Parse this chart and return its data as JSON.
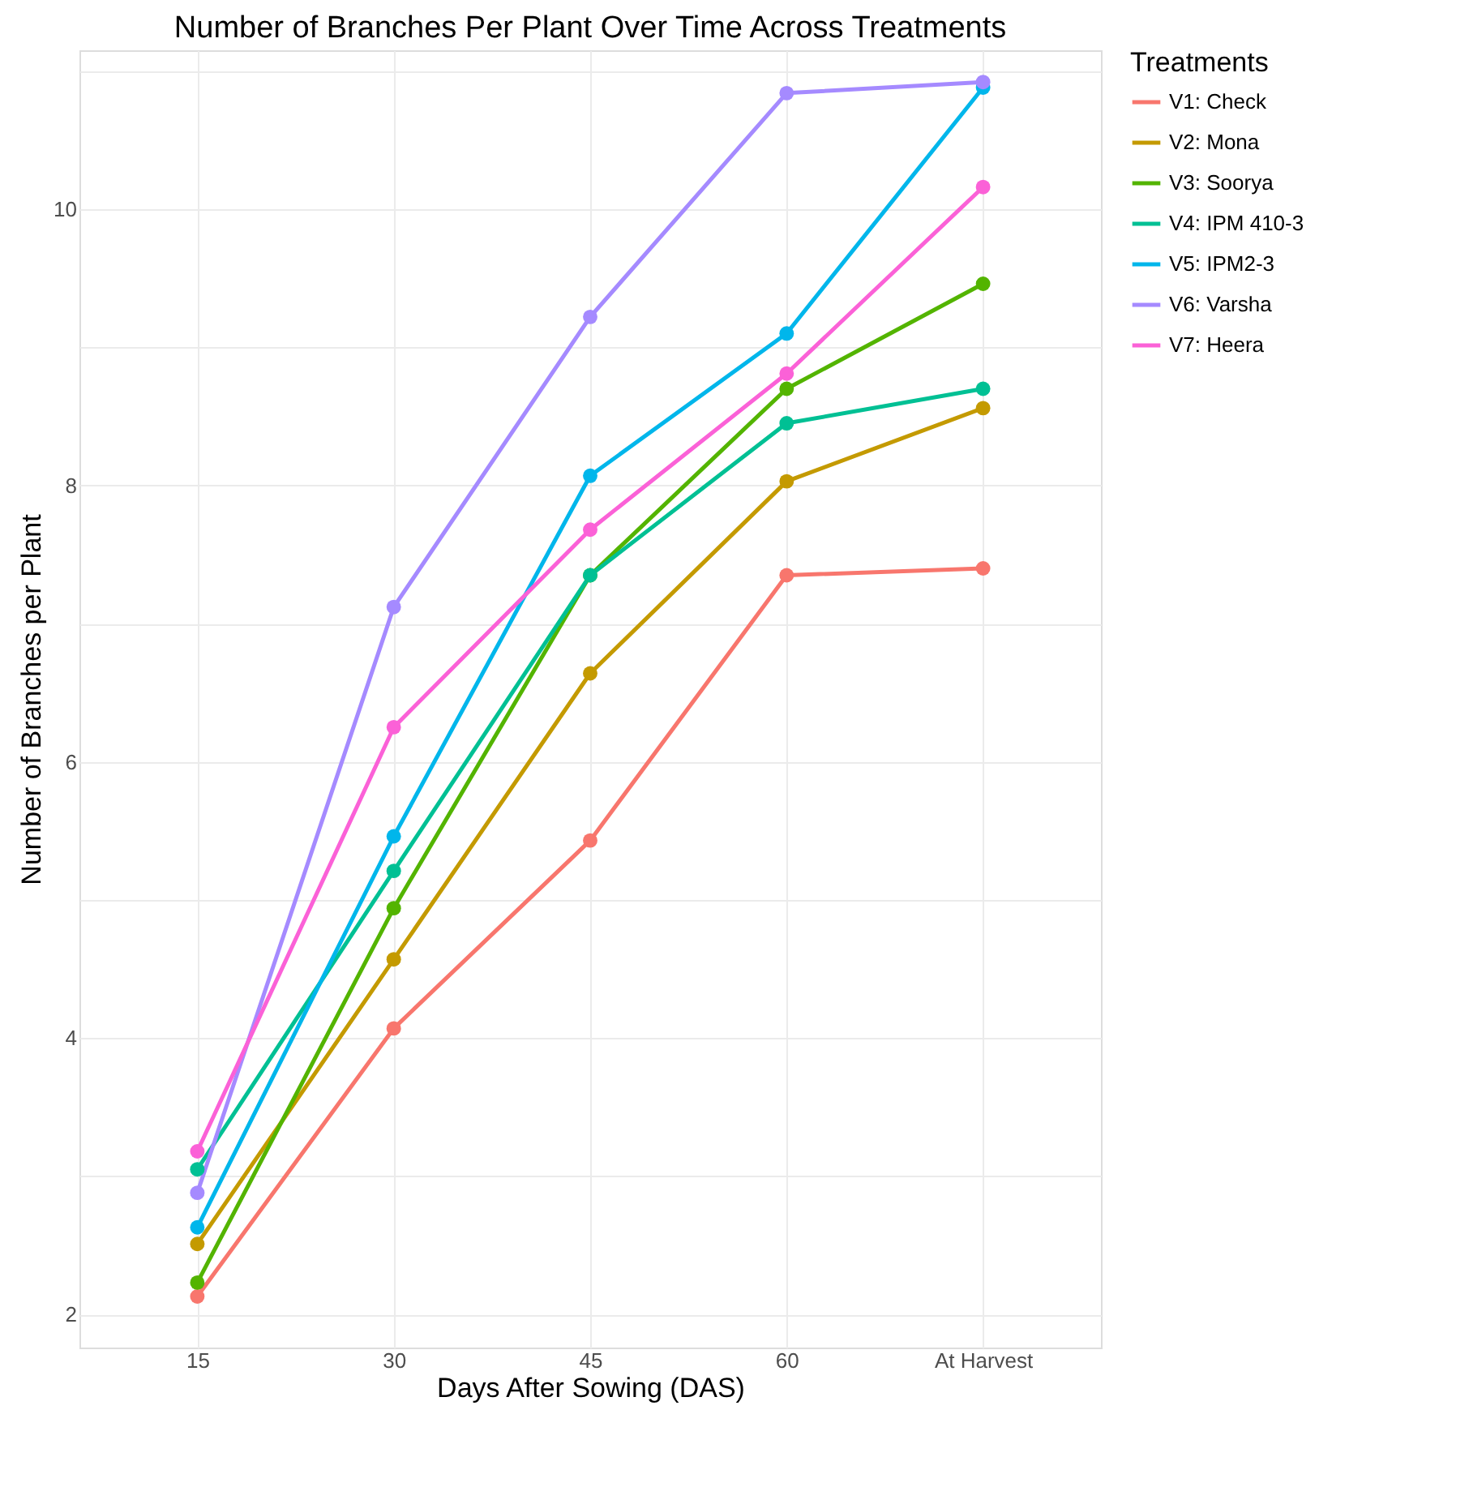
{
  "chart_data": {
    "type": "line",
    "title": "Number of Branches Per Plant Over Time Across Treatments",
    "xlabel": "Days After Sowing (DAS)",
    "ylabel": "Number of Branches per Plant",
    "legend_title": "Treatments",
    "categories": [
      "15",
      "30",
      "45",
      "60",
      "At Harvest"
    ],
    "series": [
      {
        "name": "V1: Check",
        "color": "#f8766d",
        "values": [
          2.13,
          4.07,
          5.43,
          7.35,
          7.4
        ]
      },
      {
        "name": "V2: Mona",
        "color": "#c49a00",
        "values": [
          2.51,
          4.57,
          6.64,
          8.03,
          8.56
        ]
      },
      {
        "name": "V3: Soorya",
        "color": "#53b400",
        "values": [
          2.23,
          4.94,
          7.35,
          8.7,
          9.46
        ]
      },
      {
        "name": "V4: IPM 410-3",
        "color": "#00c094",
        "values": [
          3.05,
          5.21,
          7.35,
          8.45,
          8.7
        ]
      },
      {
        "name": "V5: IPM2-3",
        "color": "#00b6eb",
        "values": [
          2.63,
          5.46,
          8.07,
          9.1,
          10.88
        ]
      },
      {
        "name": "V6: Varsha",
        "color": "#a58aff",
        "values": [
          2.88,
          7.12,
          9.22,
          10.84,
          10.92
        ]
      },
      {
        "name": "V7: Heera",
        "color": "#fb61d7",
        "values": [
          3.18,
          6.25,
          7.68,
          8.81,
          10.16
        ]
      }
    ],
    "ylim": [
      1.76,
      11.15
    ],
    "yticks": [
      2,
      {
        "value": 3,
        "label": null
      },
      4,
      {
        "value": 5,
        "label": null
      },
      6,
      {
        "value": 7,
        "label": null
      },
      8,
      {
        "value": 9,
        "label": null
      },
      10,
      {
        "value": 11,
        "label": null
      }
    ],
    "grid": true,
    "legend": "right",
    "marker": "circle",
    "line_style": "solid"
  }
}
